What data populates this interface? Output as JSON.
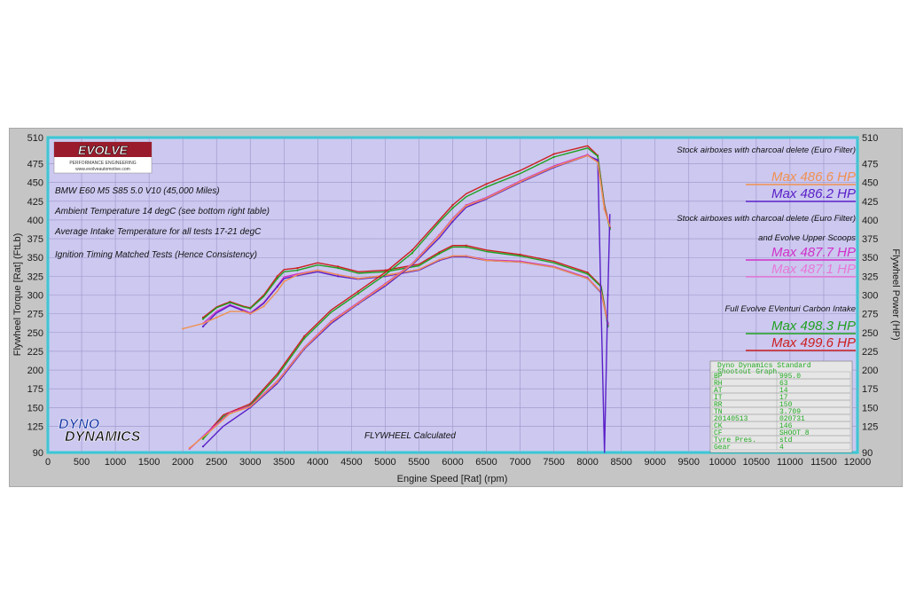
{
  "colors": {
    "frame": "#c5c5c5",
    "plot_bg": "#ccc8f0",
    "plot_border": "#22d4d8",
    "grid": "#9a96c8",
    "red": "#cc1f1f",
    "green": "#20a020",
    "purple": "#5a20c8",
    "magenta": "#d030c8",
    "pink": "#e878d8",
    "orange": "#f09050"
  },
  "logo": {
    "brand": "EVOLVE",
    "sub": "PERFORMANCE ENGINEERING",
    "url": "www.evolveautomotive.com"
  },
  "dyno_logo": {
    "line1": "DYNO",
    "line2": "DYNAMICS"
  },
  "notes_left": [
    "BMW E60 M5 S85 5.0 V10 (45,000 Miles)",
    "Ambient Temperature 14 degC (see bottom right table)",
    "Average Intake Temperature for all tests 17-21 degC",
    "Ignition Timing Matched Tests (Hence Consistency)"
  ],
  "flywheel_label": "FLYWHEEL Calculated",
  "right_notes": {
    "group1_title": "Stock airboxes with charcoal delete (Euro Filter)",
    "group1_max": [
      "Max 486.6 HP",
      "Max 486.2 HP"
    ],
    "group2_title_1": "Stock  airboxes with charcoal delete (Euro Filter)",
    "group2_title_2": "and Evolve Upper Scoops",
    "group2_max": [
      "Max 487.7 HP",
      "Max 487.1 HP"
    ],
    "group3_title": "Full Evolve EVenturi Carbon Intake",
    "group3_max": [
      "Max 498.3 HP",
      "Max 499.6 HP"
    ]
  },
  "info_table": {
    "title_1": "Dyno Dynamics Standard",
    "title_2": "Shootout Graph.",
    "rows": [
      [
        "BP",
        "995.0"
      ],
      [
        "RH",
        "63"
      ],
      [
        "AT",
        "14"
      ],
      [
        "IT",
        "17"
      ],
      [
        "RR",
        "150"
      ],
      [
        "TN",
        "3.709"
      ],
      [
        "20140513",
        "020731"
      ],
      [
        "CK",
        "146"
      ],
      [
        "CF",
        "SHOOT_8"
      ],
      [
        "Tyre Pres.",
        "std"
      ],
      [
        "Gear",
        "4"
      ]
    ]
  },
  "chart_data": {
    "type": "line",
    "xlabel": "Engine Speed [Rat] (rpm)",
    "ylabel_left": "Flywheel Torque [Rat] (FtLb)",
    "ylabel_right": "Flywheel Power (HP)",
    "xlim": [
      0,
      12000
    ],
    "ylim": [
      90,
      510
    ],
    "x_ticks": [
      0,
      500,
      1000,
      1500,
      2000,
      2500,
      3000,
      3500,
      4000,
      4500,
      5000,
      5500,
      6000,
      6500,
      7000,
      7500,
      8000,
      8500,
      9000,
      9500,
      10000,
      10500,
      11000,
      11500,
      12000
    ],
    "y_ticks": [
      90,
      125,
      150,
      175,
      200,
      225,
      250,
      275,
      300,
      325,
      350,
      375,
      400,
      425,
      450,
      475,
      510
    ],
    "grid": true,
    "series": [
      {
        "kind": "torque",
        "color": "red",
        "x": [
          2300,
          2500,
          2700,
          2900,
          3000,
          3200,
          3400,
          3500,
          3700,
          4000,
          4300,
          4600,
          5000,
          5500,
          5800,
          6000,
          6200,
          6500,
          7000,
          7500,
          8000,
          8200,
          8300
        ],
        "y": [
          270,
          284,
          291,
          285,
          283,
          300,
          325,
          334,
          336,
          343,
          338,
          331,
          333,
          341,
          357,
          366,
          366,
          360,
          354,
          345,
          330,
          312,
          260
        ]
      },
      {
        "kind": "torque",
        "color": "green",
        "x": [
          2300,
          2500,
          2700,
          2900,
          3000,
          3200,
          3400,
          3500,
          3700,
          4000,
          4300,
          4600,
          5000,
          5500,
          5800,
          6000,
          6200,
          6500,
          7000,
          7500,
          8000,
          8200,
          8300
        ],
        "y": [
          268,
          283,
          290,
          284,
          282,
          298,
          322,
          331,
          333,
          340,
          336,
          329,
          331,
          339,
          355,
          364,
          364,
          358,
          352,
          343,
          328,
          311,
          258
        ]
      },
      {
        "kind": "torque",
        "color": "magenta",
        "x": [
          2300,
          2500,
          2700,
          2900,
          3000,
          3200,
          3400,
          3500,
          3700,
          4000,
          4300,
          4600,
          5000,
          5500,
          5800,
          6000,
          6200,
          6500,
          7000,
          7500,
          8000,
          8200,
          8300
        ],
        "y": [
          262,
          278,
          287,
          280,
          276,
          290,
          312,
          324,
          328,
          333,
          327,
          322,
          326,
          334,
          347,
          352,
          352,
          347,
          345,
          338,
          323,
          304,
          262
        ]
      },
      {
        "kind": "torque",
        "color": "purple",
        "x": [
          2300,
          2500,
          2700,
          2900,
          3000,
          3200,
          3400,
          3500,
          3700,
          4000,
          4300,
          4600,
          5000,
          5500,
          5800,
          6000,
          6200,
          6500,
          7000,
          7500,
          8000,
          8200,
          8300
        ],
        "y": [
          258,
          276,
          286,
          279,
          275,
          289,
          311,
          322,
          326,
          331,
          325,
          321,
          325,
          333,
          346,
          351,
          351,
          346,
          344,
          337,
          322,
          303,
          263
        ]
      },
      {
        "kind": "torque",
        "color": "orange",
        "x": [
          2000,
          2300,
          2500,
          2700,
          2900,
          3000,
          3200,
          3400,
          3500,
          3700,
          4000,
          4300,
          4600,
          5000,
          5500,
          5800,
          6000,
          6200,
          6500,
          7000,
          7500,
          8000,
          8200,
          8300
        ],
        "y": [
          255,
          262,
          270,
          278,
          278,
          275,
          285,
          305,
          318,
          327,
          333,
          327,
          322,
          326,
          334,
          347,
          352,
          352,
          346,
          344,
          337,
          322,
          304,
          262
        ]
      },
      {
        "kind": "power",
        "color": "red",
        "x": [
          2300,
          2600,
          3000,
          3400,
          3800,
          4200,
          4600,
          5000,
          5400,
          5800,
          6000,
          6200,
          6500,
          7000,
          7500,
          8000,
          8150,
          8250,
          8330
        ],
        "y": [
          110,
          140,
          155,
          195,
          245,
          280,
          305,
          330,
          360,
          400,
          420,
          435,
          448,
          466,
          488,
          499,
          486,
          420,
          390
        ]
      },
      {
        "kind": "power",
        "color": "green",
        "x": [
          2300,
          2600,
          3000,
          3400,
          3800,
          4200,
          4600,
          5000,
          5400,
          5800,
          6000,
          6200,
          6500,
          7000,
          7500,
          8000,
          8150,
          8250,
          8330
        ],
        "y": [
          108,
          138,
          153,
          192,
          242,
          277,
          302,
          327,
          356,
          397,
          416,
          431,
          444,
          462,
          484,
          496,
          485,
          418,
          388
        ]
      },
      {
        "kind": "power",
        "color": "magenta",
        "x": [
          2100,
          2400,
          2700,
          3000,
          3400,
          3800,
          4200,
          4600,
          5000,
          5400,
          5800,
          6000,
          6200,
          6500,
          7000,
          7500,
          8000,
          8150,
          8250,
          8330
        ],
        "y": [
          95,
          120,
          143,
          152,
          185,
          230,
          265,
          290,
          315,
          342,
          380,
          402,
          420,
          430,
          452,
          472,
          487,
          478,
          415,
          392
        ]
      },
      {
        "kind": "power",
        "color": "purple",
        "x": [
          2300,
          2600,
          3000,
          3400,
          3800,
          4200,
          4600,
          5000,
          5400,
          5800,
          6000,
          6200,
          6500,
          7000,
          7500,
          8000,
          8150,
          8250,
          8300,
          8330
        ],
        "y": [
          98,
          125,
          150,
          182,
          228,
          262,
          288,
          312,
          340,
          376,
          398,
          417,
          428,
          450,
          470,
          486,
          480,
          90,
          300,
          408
        ]
      },
      {
        "kind": "power",
        "color": "orange",
        "x": [
          2100,
          2400,
          2700,
          3000,
          3400,
          3800,
          4200,
          4600,
          5000,
          5400,
          5800,
          6000,
          6200,
          6500,
          7000,
          7500,
          8000,
          8150,
          8250,
          8330
        ],
        "y": [
          96,
          118,
          142,
          151,
          184,
          229,
          264,
          289,
          314,
          341,
          379,
          401,
          419,
          429,
          451,
          471,
          486,
          477,
          414,
          391
        ]
      }
    ]
  }
}
